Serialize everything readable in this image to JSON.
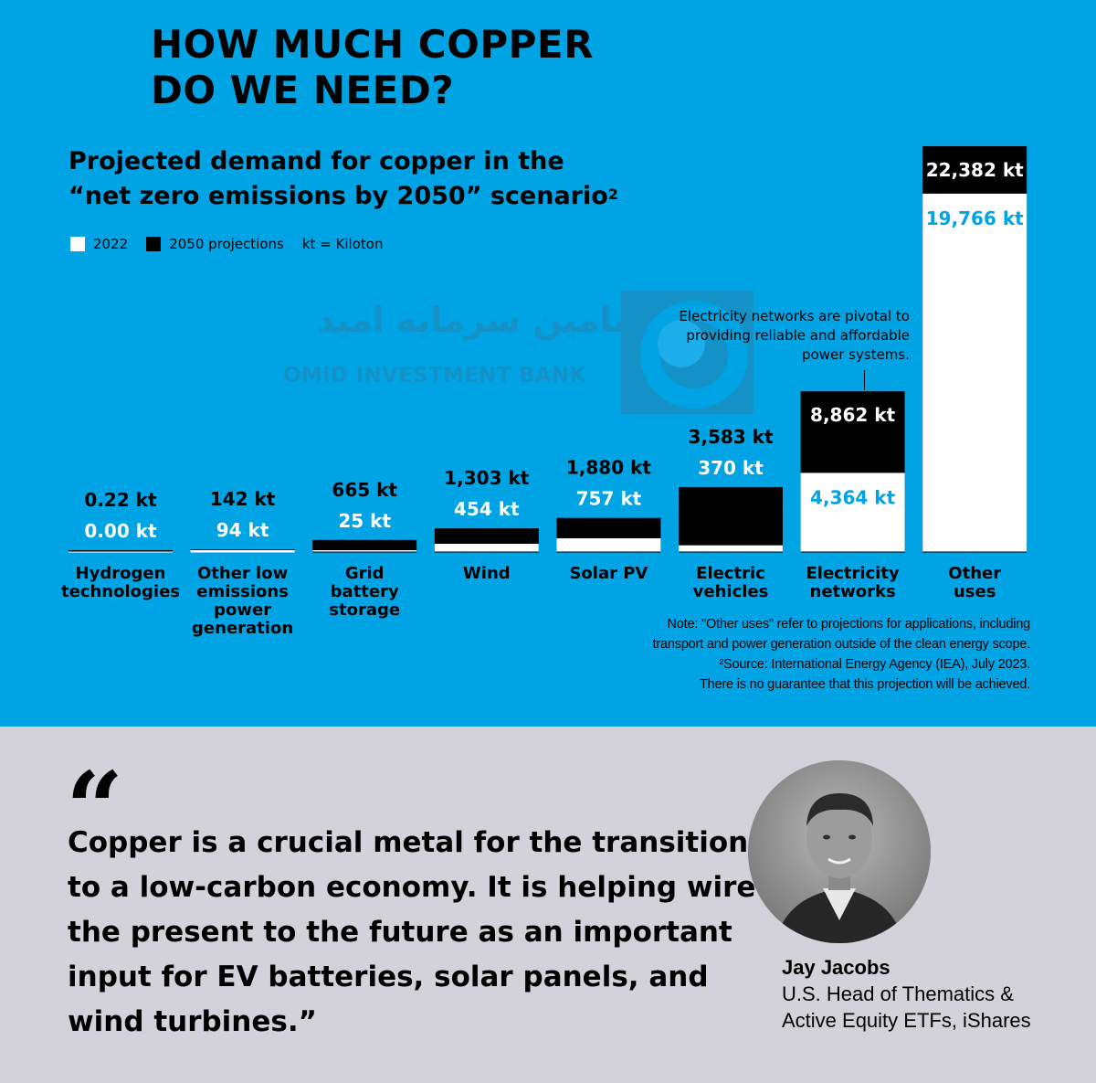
{
  "headline": [
    "HOW MUCH COPPER",
    "DO WE NEED?"
  ],
  "chart_data": {
    "type": "bar",
    "title_lines": [
      "Projected demand for copper in the",
      "“net zero emissions by 2050” scenario"
    ],
    "title_superscript": "2",
    "legend": {
      "series_2022": "2022",
      "series_2050": "2050 projections",
      "unit_note": "kt = Kiloton"
    },
    "colors": {
      "series_2022": "#ffffff",
      "series_2050": "#000000",
      "background": "#00a4e4",
      "label_2022": "#00a4e4"
    },
    "categories": [
      [
        "Hydrogen",
        "technologies"
      ],
      [
        "Other low",
        "emissions",
        "power",
        "generation"
      ],
      [
        "Grid",
        "battery",
        "storage"
      ],
      [
        "Wind"
      ],
      [
        "Solar PV"
      ],
      [
        "Electric",
        "vehicles"
      ],
      [
        "Electricity",
        "networks"
      ],
      [
        "Other",
        "uses"
      ]
    ],
    "series": [
      {
        "name": "2022",
        "values": [
          0.0,
          94,
          25,
          454,
          757,
          370,
          4364,
          19766
        ],
        "labels": [
          "0.00 kt",
          "94 kt",
          "25 kt",
          "454 kt",
          "757 kt",
          "370 kt",
          "4,364 kt",
          "19,766 kt"
        ]
      },
      {
        "name": "2050 projections",
        "values": [
          0.22,
          142,
          665,
          1303,
          1880,
          3583,
          8862,
          22382
        ],
        "labels": [
          "0.22 kt",
          "142 kt",
          "665 kt",
          "1,303 kt",
          "1,880 kt",
          "3,583 kt",
          "8,862 kt",
          "22,382 kt"
        ]
      }
    ],
    "annotation": [
      "Electricity networks are pivotal to",
      "providing reliable and affordable",
      "power systems."
    ],
    "notes": [
      "Note: \"Other uses\" refer to projections for applications, including",
      "transport and power generation outside of the clean energy scope.",
      "²Source: International Energy Agency (IEA), July 2023.",
      "There is no guarantee that this projection will be achieved."
    ]
  },
  "watermark": {
    "persian": "تامین سرمایه امید",
    "english": "OMID INVESTMENT BANK"
  },
  "quote": {
    "mark": "“",
    "text": "Copper is a crucial metal for the transition to a low-carbon economy. It is helping wire the present to the future as an important input for EV batteries, solar panels, and wind turbines.”"
  },
  "person": {
    "name": "Jay Jacobs",
    "role_lines": [
      "U.S. Head of Thematics &",
      "Active Equity ETFs, iShares"
    ]
  }
}
